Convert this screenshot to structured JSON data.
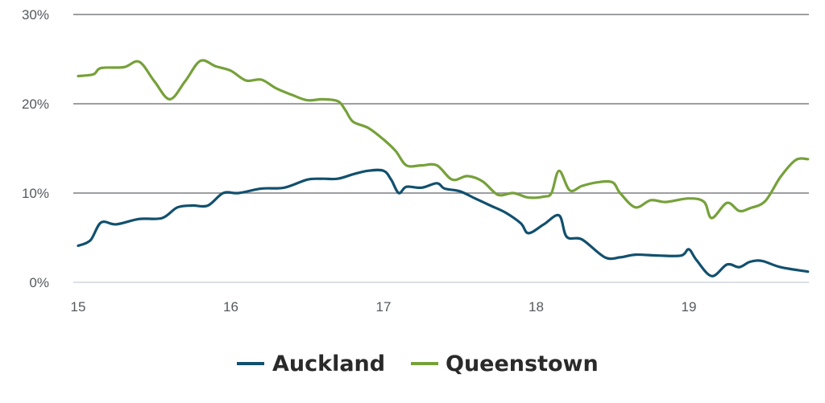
{
  "chart_data": {
    "type": "line",
    "x_ticks": [
      "15",
      "16",
      "17",
      "18",
      "19"
    ],
    "y_ticks": [
      "0%",
      "10%",
      "20%",
      "30%"
    ],
    "xlim": [
      15,
      19.78
    ],
    "ylim": [
      0,
      30
    ],
    "grid": true,
    "legend_position": "bottom-center",
    "series": [
      {
        "name": "Auckland",
        "color": "#12506e",
        "x": [
          15.0,
          15.08,
          15.15,
          15.25,
          15.4,
          15.55,
          15.65,
          15.75,
          15.85,
          15.95,
          16.05,
          16.2,
          16.35,
          16.5,
          16.6,
          16.7,
          16.8,
          16.9,
          17.0,
          17.05,
          17.1,
          17.15,
          17.25,
          17.35,
          17.4,
          17.5,
          17.6,
          17.7,
          17.8,
          17.9,
          17.95,
          18.05,
          18.15,
          18.2,
          18.3,
          18.45,
          18.55,
          18.65,
          18.8,
          18.95,
          19.0,
          19.05,
          19.15,
          19.25,
          19.33,
          19.4,
          19.48,
          19.6,
          19.78
        ],
        "values": [
          4.1,
          4.7,
          6.7,
          6.5,
          7.1,
          7.2,
          8.4,
          8.6,
          8.6,
          10.0,
          10.0,
          10.5,
          10.6,
          11.5,
          11.6,
          11.6,
          12.1,
          12.5,
          12.5,
          11.5,
          10.0,
          10.7,
          10.6,
          11.1,
          10.5,
          10.2,
          9.4,
          8.6,
          7.8,
          6.6,
          5.5,
          6.5,
          7.5,
          5.1,
          4.8,
          2.8,
          2.8,
          3.1,
          3.0,
          3.0,
          3.7,
          2.5,
          0.7,
          2.0,
          1.7,
          2.3,
          2.4,
          1.7,
          1.2
        ]
      },
      {
        "name": "Queenstown",
        "color": "#76a13a",
        "x": [
          15.0,
          15.1,
          15.15,
          15.3,
          15.4,
          15.5,
          15.6,
          15.7,
          15.8,
          15.9,
          16.0,
          16.1,
          16.2,
          16.3,
          16.4,
          16.5,
          16.6,
          16.7,
          16.75,
          16.8,
          16.9,
          17.0,
          17.08,
          17.15,
          17.25,
          17.35,
          17.45,
          17.55,
          17.65,
          17.75,
          17.85,
          17.95,
          18.05,
          18.1,
          18.15,
          18.22,
          18.3,
          18.4,
          18.5,
          18.55,
          18.65,
          18.75,
          18.85,
          19.0,
          19.1,
          19.15,
          19.25,
          19.33,
          19.4,
          19.5,
          19.6,
          19.7,
          19.78
        ],
        "values": [
          23.1,
          23.3,
          24.0,
          24.1,
          24.7,
          22.5,
          20.5,
          22.5,
          24.8,
          24.2,
          23.7,
          22.6,
          22.7,
          21.7,
          21.0,
          20.4,
          20.5,
          20.3,
          19.3,
          18.0,
          17.3,
          16.0,
          14.7,
          13.1,
          13.1,
          13.1,
          11.5,
          11.9,
          11.3,
          9.8,
          10.0,
          9.5,
          9.6,
          10.0,
          12.5,
          10.3,
          10.8,
          11.2,
          11.2,
          10.0,
          8.4,
          9.2,
          9.0,
          9.4,
          9.0,
          7.2,
          8.9,
          8.0,
          8.3,
          9.1,
          11.8,
          13.7,
          13.8
        ]
      }
    ]
  }
}
